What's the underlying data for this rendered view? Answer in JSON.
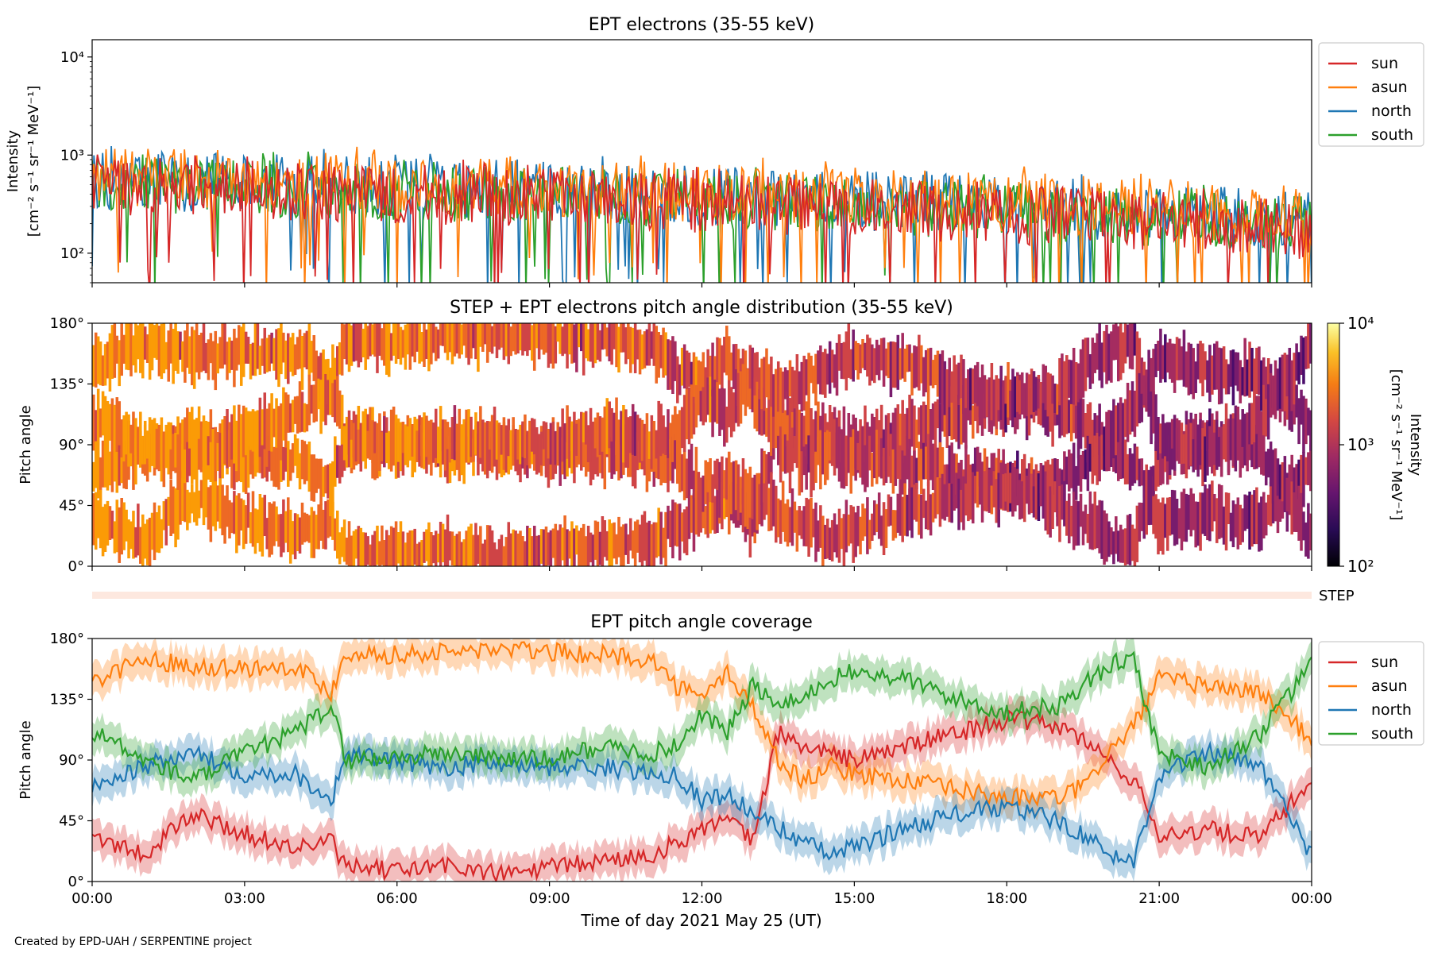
{
  "footer": {
    "credit": "Created by EPD-UAH / SERPENTINE project"
  },
  "colors": {
    "sun": "#d62728",
    "asun": "#ff7f0e",
    "north": "#1f77b4",
    "south": "#2ca02c"
  },
  "chart_data": [
    {
      "type": "line",
      "title": "EPT electrons (35-55 keV)",
      "ylabel_line1": "Intensity",
      "ylabel_line2": "[cm⁻² s⁻¹ sr⁻¹ MeV⁻¹]",
      "yscale": "log",
      "ylim": [
        50,
        15000
      ],
      "yticks": [
        {
          "value": 100,
          "label": "10²"
        },
        {
          "value": 1000,
          "label": "10³"
        },
        {
          "value": 10000,
          "label": "10⁴"
        }
      ],
      "xlim_hours": [
        0,
        24
      ],
      "legend": "upper-right-outside",
      "series": [
        {
          "name": "sun",
          "start_mean": 480,
          "end_mean": 170
        },
        {
          "name": "asun",
          "start_mean": 600,
          "end_mean": 240
        },
        {
          "name": "north",
          "start_mean": 560,
          "end_mean": 210
        },
        {
          "name": "south",
          "start_mean": 520,
          "end_mean": 190
        }
      ]
    },
    {
      "type": "heatmap",
      "title": "STEP + EPT electrons pitch angle distribution (35-55 keV)",
      "ylabel": "Pitch angle",
      "yticks": [
        "0°",
        "45°",
        "90°",
        "135°",
        "180°"
      ],
      "ylim": [
        0,
        180
      ],
      "colorbar": {
        "label_line1": "Intensity",
        "label_line2": "[cm⁻² s⁻¹ sr⁻¹ MeV⁻¹]",
        "scale": "log",
        "range": [
          100,
          10000
        ],
        "ticks": [
          "10²",
          "10³",
          "10⁴"
        ],
        "colormap": "inferno"
      },
      "step_strip_label": "STEP"
    },
    {
      "type": "line",
      "title": "EPT pitch angle coverage",
      "ylabel": "Pitch angle",
      "ylim": [
        0,
        180
      ],
      "yticks": [
        "0°",
        "45°",
        "90°",
        "135°",
        "180°"
      ],
      "xlabel": "Time of day 2021 May 25 (UT)",
      "xticks": [
        "00:00",
        "03:00",
        "06:00",
        "09:00",
        "12:00",
        "15:00",
        "18:00",
        "21:00",
        "00:00"
      ],
      "xlim_hours": [
        0,
        24
      ],
      "band_halfwidth_deg": 12,
      "legend": "upper-right-outside",
      "series": [
        {
          "name": "sun",
          "hours": [
            0,
            1,
            2,
            3,
            4,
            4.7,
            5,
            6,
            7,
            8,
            9,
            10,
            11,
            11.5,
            12,
            12.5,
            13,
            13.5,
            14,
            14.5,
            15,
            16,
            17,
            18,
            19,
            19.5,
            20,
            20.5,
            21,
            22,
            23,
            24
          ],
          "values": [
            35,
            20,
            50,
            35,
            25,
            30,
            10,
            8,
            12,
            5,
            10,
            15,
            20,
            28,
            40,
            45,
            30,
            110,
            100,
            95,
            90,
            100,
            110,
            120,
            115,
            105,
            90,
            75,
            35,
            38,
            32,
            75
          ]
        },
        {
          "name": "asun",
          "hours": [
            0,
            1,
            2,
            3,
            4,
            4.7,
            5,
            6,
            7,
            8,
            9,
            10,
            11,
            11.5,
            12,
            12.5,
            13,
            13.5,
            14,
            14.5,
            15,
            16,
            17,
            18,
            19,
            19.5,
            20,
            20.5,
            21,
            22,
            23,
            24
          ],
          "values": [
            148,
            165,
            160,
            158,
            160,
            140,
            170,
            168,
            170,
            172,
            170,
            168,
            165,
            145,
            135,
            155,
            130,
            90,
            75,
            85,
            80,
            75,
            68,
            62,
            62,
            70,
            95,
            115,
            150,
            145,
            140,
            105
          ]
        },
        {
          "name": "north",
          "hours": [
            0,
            1,
            2,
            3,
            4,
            4.7,
            5,
            6,
            7,
            8,
            9,
            10,
            11,
            11.5,
            12,
            12.5,
            13,
            13.5,
            14,
            14.5,
            15,
            16,
            17,
            18,
            19,
            19.5,
            20,
            20.5,
            21,
            22,
            23,
            24
          ],
          "values": [
            70,
            85,
            95,
            80,
            80,
            60,
            95,
            88,
            85,
            88,
            85,
            85,
            80,
            80,
            60,
            65,
            50,
            40,
            30,
            20,
            25,
            40,
            50,
            55,
            45,
            35,
            20,
            15,
            80,
            95,
            85,
            20
          ]
        },
        {
          "name": "south",
          "hours": [
            0,
            1,
            2,
            3,
            4,
            4.7,
            5,
            6,
            7,
            8,
            9,
            10,
            11,
            11.5,
            12,
            12.5,
            13,
            13.5,
            14,
            14.5,
            15,
            16,
            17,
            18,
            19,
            19.5,
            20,
            20.5,
            21,
            22,
            23,
            24
          ],
          "values": [
            112,
            90,
            75,
            95,
            110,
            130,
            90,
            92,
            95,
            92,
            90,
            100,
            95,
            100,
            125,
            110,
            145,
            130,
            135,
            150,
            155,
            150,
            135,
            125,
            130,
            145,
            160,
            165,
            95,
            85,
            110,
            160
          ]
        }
      ]
    }
  ]
}
